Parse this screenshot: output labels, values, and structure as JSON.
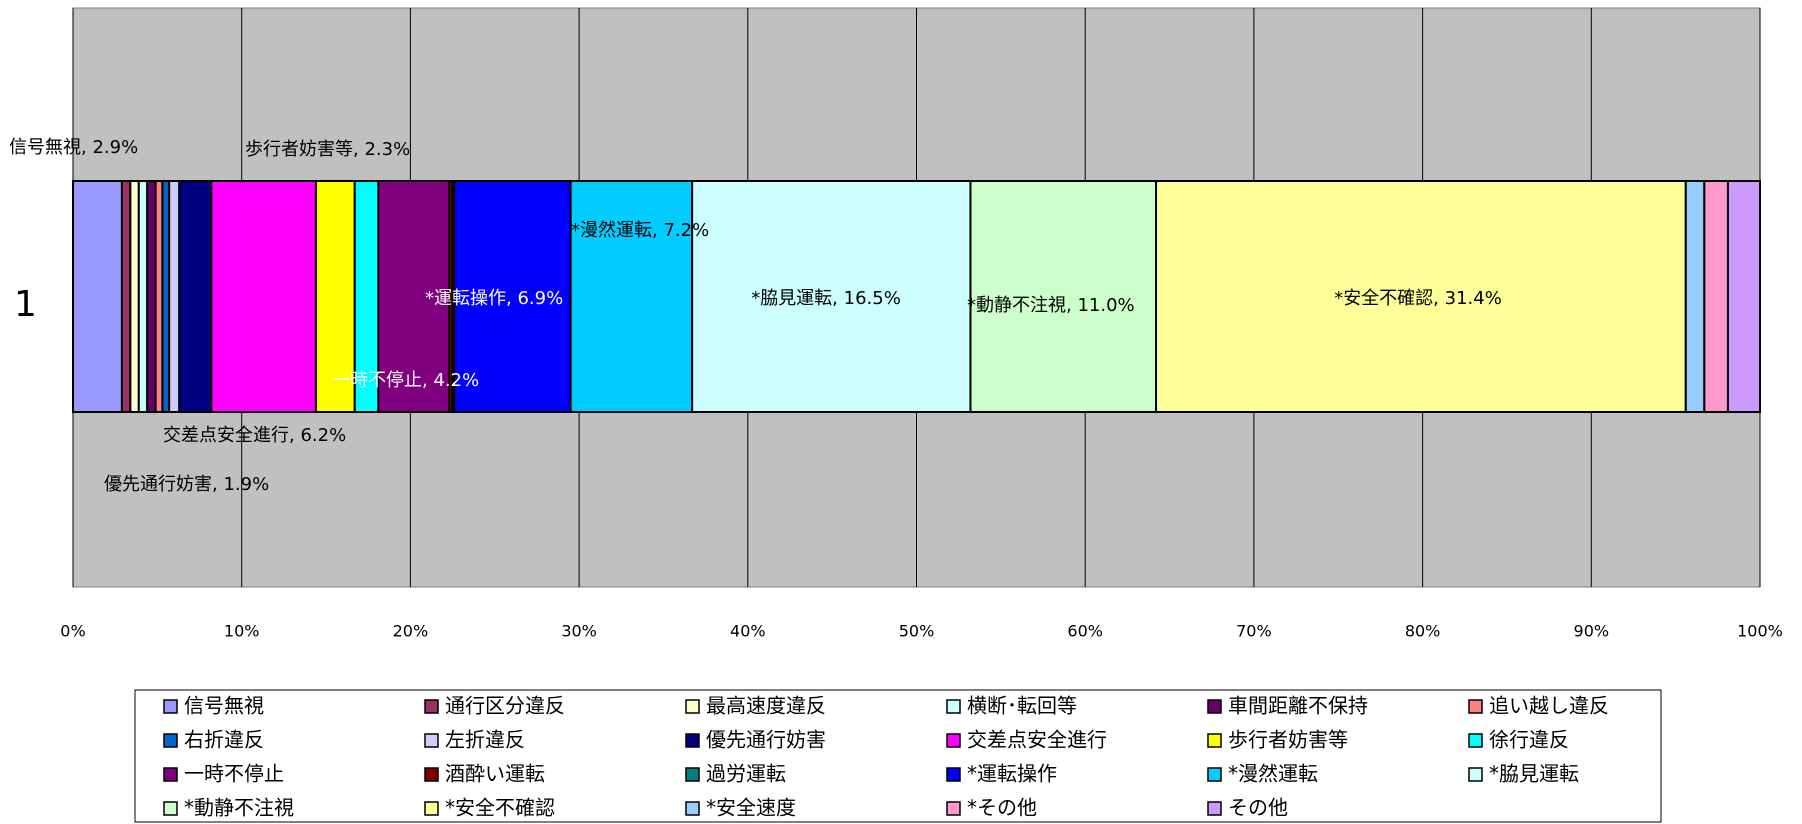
{
  "chart_data": {
    "type": "bar",
    "orientation": "horizontal",
    "stacked": "percent",
    "categories": [
      "1"
    ],
    "series": [
      {
        "name": "信号無視",
        "color": "#9999ff",
        "values": [
          2.9
        ],
        "value_labels": [
          "信号無視, 2.9%"
        ]
      },
      {
        "name": "通行区分違反",
        "color": "#993366",
        "values": [
          0.5
        ]
      },
      {
        "name": "最高速度違反",
        "color": "#ffffcc",
        "values": [
          0.5
        ]
      },
      {
        "name": "横断･転回等",
        "color": "#ccffff",
        "values": [
          0.5
        ]
      },
      {
        "name": "車間距離不保持",
        "color": "#660066",
        "values": [
          0.5
        ]
      },
      {
        "name": "追い越し違反",
        "color": "#ff8080",
        "values": [
          0.4
        ]
      },
      {
        "name": "右折違反",
        "color": "#0066cc",
        "values": [
          0.4
        ]
      },
      {
        "name": "左折違反",
        "color": "#ccccff",
        "values": [
          0.6
        ]
      },
      {
        "name": "優先通行妨害",
        "color": "#000080",
        "values": [
          1.9
        ],
        "value_labels": [
          "優先通行妨害, 1.9%"
        ]
      },
      {
        "name": "交差点安全進行",
        "color": "#ff00ff",
        "values": [
          6.2
        ],
        "value_labels": [
          "交差点安全進行, 6.2%"
        ]
      },
      {
        "name": "歩行者妨害等",
        "color": "#ffff00",
        "values": [
          2.3
        ],
        "value_labels": [
          "歩行者妨害等, 2.3%"
        ]
      },
      {
        "name": "徐行違反",
        "color": "#00ffff",
        "values": [
          1.4
        ]
      },
      {
        "name": "一時不停止",
        "color": "#800080",
        "values": [
          4.2
        ],
        "value_labels": [
          "一時不停止, 4.2%"
        ]
      },
      {
        "name": "酒酔い運転",
        "color": "#800000",
        "values": [
          0.2
        ]
      },
      {
        "name": "過労運転",
        "color": "#008080",
        "values": [
          0.1
        ]
      },
      {
        "name": "*運転操作",
        "color": "#0000ff",
        "values": [
          6.9
        ],
        "value_labels": [
          "*運転操作, 6.9%"
        ]
      },
      {
        "name": "*漫然運転",
        "color": "#00ccff",
        "values": [
          7.2
        ],
        "value_labels": [
          "*漫然運転, 7.2%"
        ]
      },
      {
        "name": "*脇見運転",
        "color": "#ccffff",
        "values": [
          16.5
        ],
        "value_labels": [
          "*脇見運転, 16.5%"
        ]
      },
      {
        "name": "*動静不注視",
        "color": "#ccffcc",
        "values": [
          11.0
        ],
        "value_labels": [
          "*動静不注視, 11.0%"
        ]
      },
      {
        "name": "*安全不確認",
        "color": "#ffff99",
        "values": [
          31.4
        ],
        "value_labels": [
          "*安全不確認, 31.4%"
        ]
      },
      {
        "name": "*安全速度",
        "color": "#99ccff",
        "values": [
          1.1
        ]
      },
      {
        "name": "*その他",
        "color": "#ff99cc",
        "values": [
          1.4
        ]
      },
      {
        "name": "その他",
        "color": "#cc99ff",
        "values": [
          1.9
        ]
      }
    ],
    "xlim": [
      0,
      100
    ],
    "xticks": [
      {
        "value": 0,
        "label": "0%"
      },
      {
        "value": 10,
        "label": "10%"
      },
      {
        "value": 20,
        "label": "20%"
      },
      {
        "value": 30,
        "label": "30%"
      },
      {
        "value": 40,
        "label": "40%"
      },
      {
        "value": 50,
        "label": "50%"
      },
      {
        "value": 60,
        "label": "60%"
      },
      {
        "value": 70,
        "label": "70%"
      },
      {
        "value": 80,
        "label": "80%"
      },
      {
        "value": 90,
        "label": "90%"
      },
      {
        "value": 100,
        "label": "100%"
      }
    ],
    "grid": true,
    "plot_background": "#c0c0c0",
    "legend": "bottom"
  }
}
